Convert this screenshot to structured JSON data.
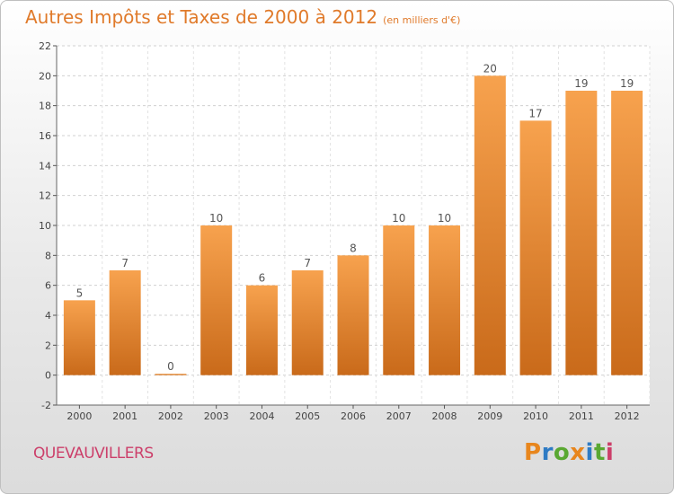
{
  "header": {
    "title": "Autres Impôts et Taxes de 2000 à 2012",
    "unit": "(en milliers d'€)"
  },
  "footer": {
    "city": "QUEVAUVILLERS",
    "logo_letters": [
      "P",
      "r",
      "o",
      "x",
      "i",
      "t",
      "i"
    ],
    "logo_colors": [
      "#e8861d",
      "#2e7bc4",
      "#5aa832",
      "#e8861d",
      "#2e7bc4",
      "#5aa832",
      "#cc3f6a"
    ]
  },
  "chart_data": {
    "type": "bar",
    "title": "Autres Impôts et Taxes de 2000 à 2012",
    "subtitle": "(en milliers d'€)",
    "categories": [
      "2000",
      "2001",
      "2002",
      "2003",
      "2004",
      "2005",
      "2006",
      "2007",
      "2008",
      "2009",
      "2010",
      "2011",
      "2012"
    ],
    "values": [
      5,
      7,
      0,
      10,
      6,
      7,
      8,
      10,
      10,
      20,
      17,
      19,
      19
    ],
    "value_labels": [
      "5",
      "7",
      "0",
      "10",
      "6",
      "7",
      "8",
      "10",
      "10",
      "20",
      "17",
      "19",
      "19"
    ],
    "ylim": [
      -2,
      22
    ],
    "yticks": [
      -2,
      0,
      2,
      4,
      6,
      8,
      10,
      12,
      14,
      16,
      18,
      20,
      22
    ],
    "grid": true,
    "bar_color_top": "#f7a24e",
    "bar_color_bottom": "#c96a1a"
  }
}
